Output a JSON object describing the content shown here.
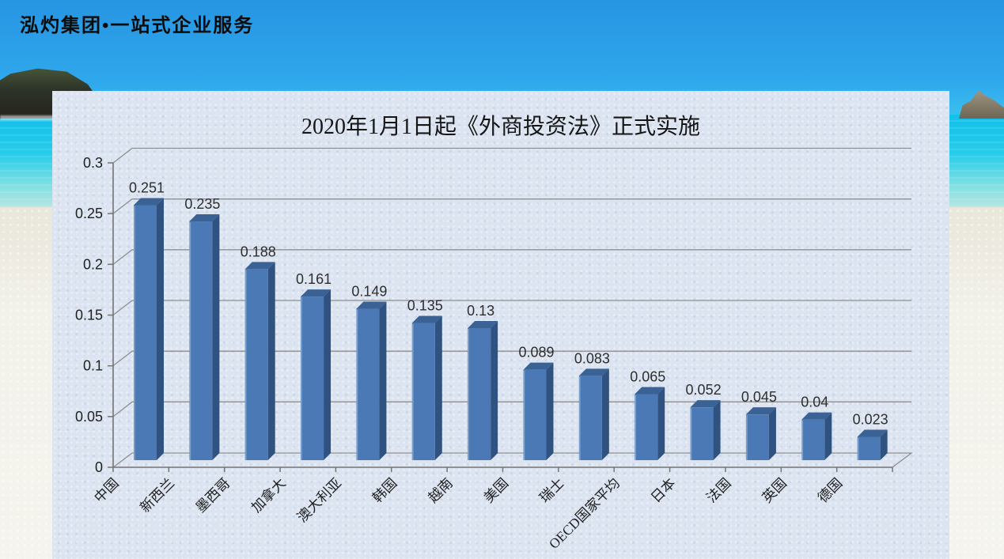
{
  "header": {
    "brand": "泓灼集团•一站式企业服务"
  },
  "chart_data": {
    "type": "bar",
    "title": "2020年1月1日起《外商投资法》正式实施",
    "categories": [
      "中国",
      "新西兰",
      "墨西哥",
      "加拿大",
      "澳大利亚",
      "韩国",
      "越南",
      "美国",
      "瑞士",
      "OECD国家平均",
      "日本",
      "法国",
      "英国",
      "德国"
    ],
    "values": [
      0.251,
      0.235,
      0.188,
      0.161,
      0.149,
      0.135,
      0.13,
      0.089,
      0.083,
      0.065,
      0.052,
      0.045,
      0.04,
      0.023
    ],
    "data_labels": [
      "0.251",
      "0.235",
      "0.188",
      "0.161",
      "0.149",
      "0.135",
      "0.13",
      "0.089",
      "0.083",
      "0.065",
      "0.052",
      "0.045",
      "0.04",
      "0.023"
    ],
    "xlabel": "",
    "ylabel": "",
    "ylim": [
      0,
      0.3
    ],
    "ytick_interval": 0.05,
    "ytick_labels": [
      "0",
      "0.05",
      "0.1",
      "0.15",
      "0.2",
      "0.25",
      "0.3"
    ],
    "grid": true,
    "legend_position": "none",
    "style_3d": true,
    "colors": {
      "bar_front": "#4A79B6",
      "bar_side": "#2F5280",
      "bar_top": "#3A6294",
      "bar_highlight": "#84A8D2",
      "gridline": "#8f8f8f",
      "axis": "#757575",
      "value_label": "#2e2e2e",
      "tick_label": "#1f1f1f",
      "panel": "#dbe4f0"
    }
  }
}
